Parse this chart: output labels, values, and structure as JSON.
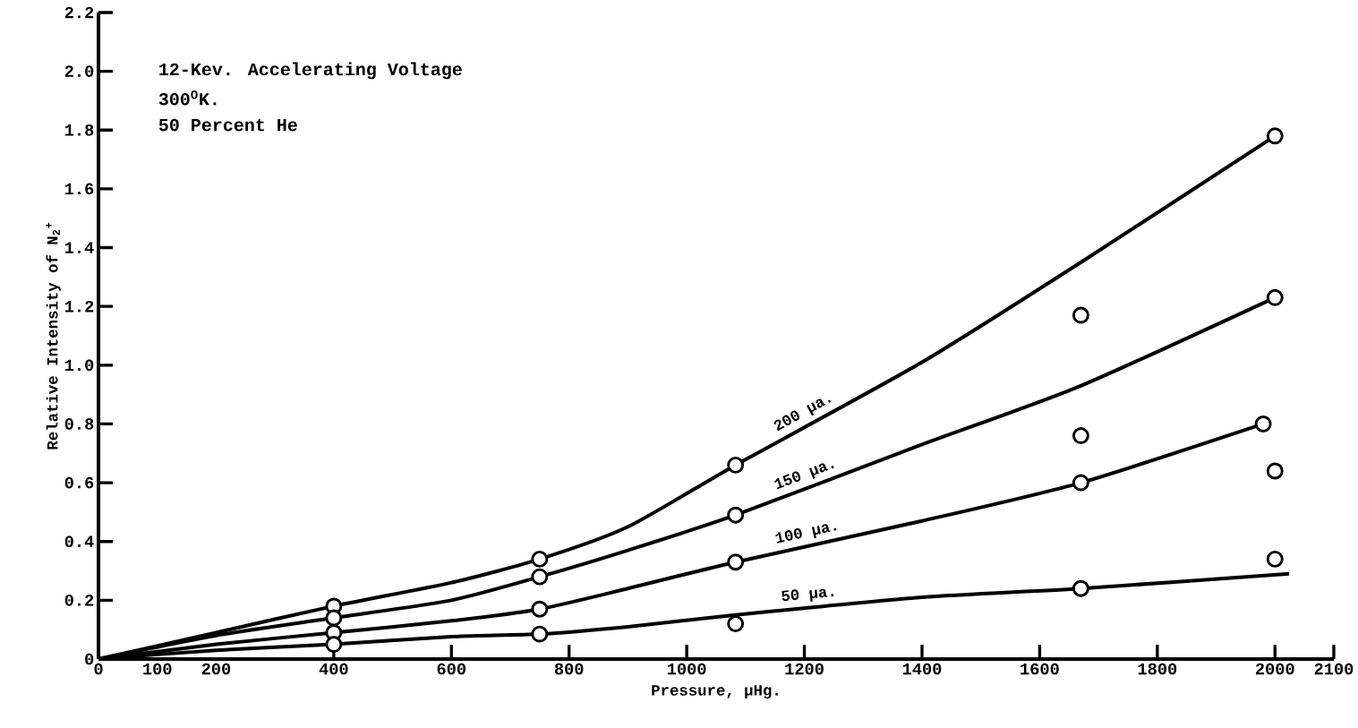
{
  "chart_data": {
    "type": "line",
    "xlabel": "Pressure, µHg.",
    "ylabel": "Relative Intensity of N$_{2}$$^{+}$",
    "annotations": [
      "12-Kev. Accelerating Voltage",
      "300$^{O}$K.",
      "50 Percent He"
    ],
    "xlim": [
      0,
      2100
    ],
    "ylim": [
      0,
      2.2
    ],
    "xticks": [
      0,
      100,
      200,
      400,
      600,
      800,
      1000,
      1200,
      1400,
      1600,
      1800,
      2000,
      2100
    ],
    "yticks": [
      0,
      0.2,
      0.4,
      0.6,
      0.8,
      {
        "value": 1.0,
        "label": "1.0"
      },
      1.2,
      1.4,
      1.6,
      1.8,
      {
        "value": 2.0,
        "label": "2.0"
      },
      2.2
    ],
    "grid": false,
    "series": [
      {
        "name": "200 µa.",
        "marker": "none",
        "color": "#000000",
        "x": [
          0,
          200,
          400,
          600,
          750,
          900,
          1083,
          1400,
          1670,
          2000
        ],
        "values": [
          0,
          0.09,
          0.18,
          0.26,
          0.34,
          0.45,
          0.66,
          1.01,
          1.35,
          1.78
        ]
      },
      {
        "name": "150 µa.",
        "marker": "none",
        "color": "#000000",
        "x": [
          0,
          200,
          400,
          600,
          750,
          900,
          1083,
          1400,
          1670,
          2000
        ],
        "values": [
          0,
          0.08,
          0.14,
          0.2,
          0.28,
          0.37,
          0.49,
          0.73,
          0.93,
          1.23
        ]
      },
      {
        "name": "100 µa.",
        "marker": "none",
        "color": "#000000",
        "x": [
          0,
          200,
          400,
          600,
          750,
          900,
          1083,
          1400,
          1670,
          1980
        ],
        "values": [
          0,
          0.05,
          0.09,
          0.13,
          0.17,
          0.24,
          0.33,
          0.47,
          0.6,
          0.8
        ]
      },
      {
        "name": "50 µa.",
        "marker": "none",
        "color": "#000000",
        "x": [
          0,
          200,
          400,
          600,
          750,
          900,
          1083,
          1400,
          1670,
          2024
        ],
        "values": [
          0,
          0.03,
          0.05,
          0.076,
          0.085,
          0.11,
          0.15,
          0.21,
          0.24,
          0.29
        ]
      },
      {
        "type": "scatter",
        "marker": "circle",
        "color": "#000000",
        "x": [
          400,
          400,
          400,
          400,
          750,
          750,
          750,
          750,
          1083,
          1083,
          1083,
          1083,
          1670,
          1670,
          1670,
          1670,
          2000,
          2000,
          1980,
          2000,
          2000
        ],
        "values": [
          0.18,
          0.14,
          0.09,
          0.05,
          0.34,
          0.28,
          0.17,
          0.085,
          0.66,
          0.49,
          0.33,
          0.12,
          1.17,
          0.76,
          0.6,
          0.24,
          1.78,
          1.23,
          0.8,
          0.64,
          0.34
        ]
      }
    ]
  }
}
